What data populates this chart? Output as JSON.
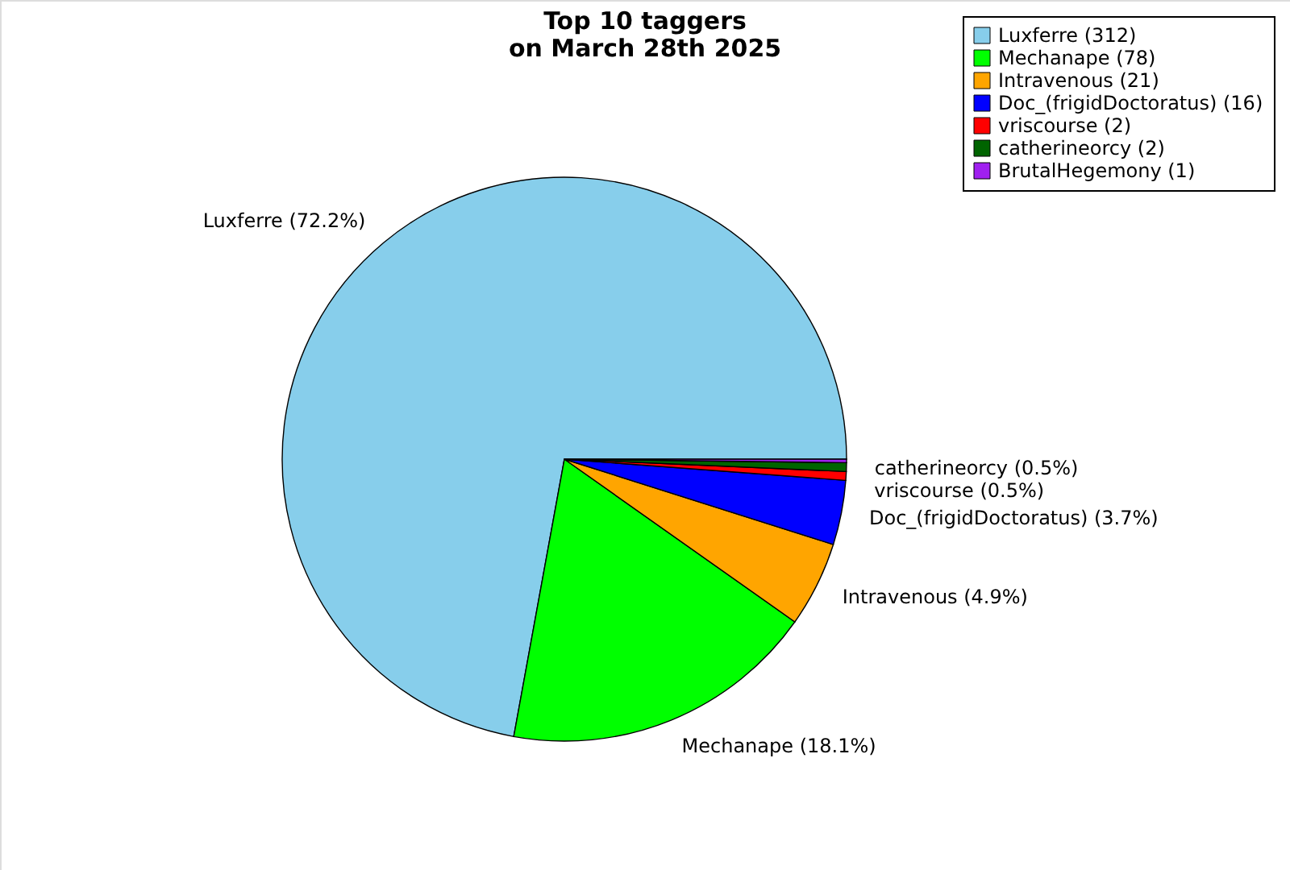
{
  "chart_data": {
    "type": "pie",
    "title": "Top 10 taggers\non March 28th 2025",
    "categories": [
      "Luxferre (312)",
      "Mechanape (78)",
      "Intravenous (21)",
      "Doc_(frigidDoctoratus) (16)",
      "vriscourse (2)",
      "catherineorcy (2)",
      "BrutalHegemony (1)"
    ],
    "values": [
      72.2,
      18.1,
      4.9,
      3.7,
      0.5,
      0.5,
      0.2
    ],
    "value_labels": [
      "Luxferre (72.2%)",
      "Mechanape (18.1%)",
      "Intravenous (4.9%)",
      "Doc_(frigidDoctoratus) (3.7%)",
      "vriscourse (0.5%)",
      "catherineorcy (0.5%)",
      null
    ],
    "colors": [
      "#87ceeb",
      "#00ff00",
      "#ffa500",
      "#0000ff",
      "#ff0000",
      "#006400",
      "#a020f0"
    ],
    "legend": "top right"
  }
}
